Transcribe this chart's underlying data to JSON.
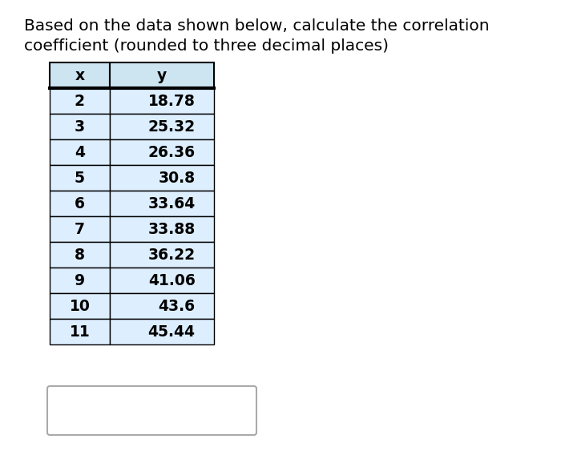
{
  "title_line1": "Based on the data shown below, calculate the correlation",
  "title_line2": "coefficient (rounded to three decimal places)",
  "col_headers": [
    "x",
    "y"
  ],
  "x_values": [
    2,
    3,
    4,
    5,
    6,
    7,
    8,
    9,
    10,
    11
  ],
  "y_values": [
    18.78,
    25.32,
    26.36,
    30.8,
    33.64,
    33.88,
    36.22,
    41.06,
    43.6,
    45.44
  ],
  "header_bg": "#cce5f0",
  "row_bg": "#ddeeff",
  "row_bg_alt": "#ddeeff",
  "border_color": "#000000",
  "text_color": "#000000",
  "bg_color": "#ffffff",
  "title_fontsize": 14.5,
  "table_fontsize": 13.5,
  "fig_width": 7.0,
  "fig_height": 5.68,
  "fig_dpi": 100
}
